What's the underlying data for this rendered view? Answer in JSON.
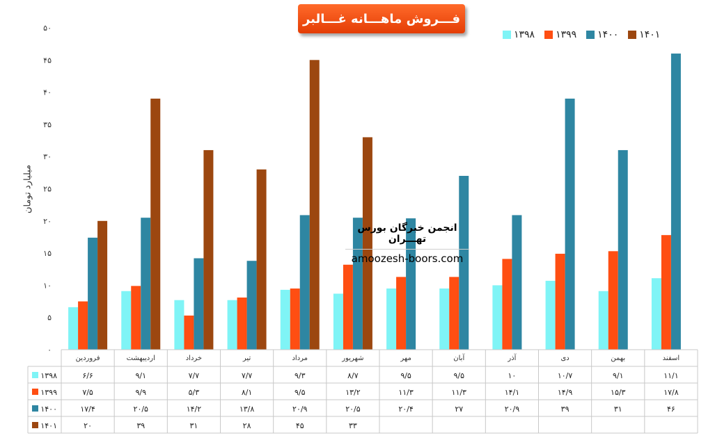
{
  "chart_data": {
    "type": "bar",
    "title": "فـــروش ماهـــانه غـــالبر",
    "ylabel": "میلیارد تومان",
    "xlabel": "",
    "ylim": [
      0,
      50
    ],
    "yticks": [
      0,
      5,
      10,
      15,
      20,
      25,
      30,
      35,
      40,
      45,
      50
    ],
    "ytick_labels": [
      "۰",
      "۵",
      "۱۰",
      "۱۵",
      "۲۰",
      "۲۵",
      "۳۰",
      "۳۵",
      "۴۰",
      "۴۵",
      "۵۰"
    ],
    "grid": false,
    "legend_position": "top-right",
    "categories": [
      "فروردین",
      "اردیبهشت",
      "خرداد",
      "تیر",
      "مرداد",
      "شهریور",
      "مهر",
      "آبان",
      "آذر",
      "دی",
      "بهمن",
      "اسفند"
    ],
    "series": [
      {
        "name": "۱۳۹۸",
        "color": "#7ff4f6",
        "values": [
          6.6,
          9.1,
          7.7,
          7.7,
          9.3,
          8.7,
          9.5,
          9.5,
          10,
          10.7,
          9.1,
          11.1
        ],
        "labels": [
          "۶/۶",
          "۹/۱",
          "۷/۷",
          "۷/۷",
          "۹/۳",
          "۸/۷",
          "۹/۵",
          "۹/۵",
          "۱۰",
          "۱۰/۷",
          "۹/۱",
          "۱۱/۱"
        ]
      },
      {
        "name": "۱۳۹۹",
        "color": "#ff4e12",
        "values": [
          7.5,
          9.9,
          5.3,
          8.1,
          9.5,
          13.2,
          11.3,
          11.3,
          14.1,
          14.9,
          15.3,
          17.8
        ],
        "labels": [
          "۷/۵",
          "۹/۹",
          "۵/۳",
          "۸/۱",
          "۹/۵",
          "۱۳/۲",
          "۱۱/۳",
          "۱۱/۳",
          "۱۴/۱",
          "۱۴/۹",
          "۱۵/۳",
          "۱۷/۸"
        ]
      },
      {
        "name": "۱۴۰۰",
        "color": "#2e86a2",
        "values": [
          17.4,
          20.5,
          14.2,
          13.8,
          20.9,
          20.5,
          20.4,
          27,
          20.9,
          39,
          31,
          46
        ],
        "labels": [
          "۱۷/۴",
          "۲۰/۵",
          "۱۴/۲",
          "۱۳/۸",
          "۲۰/۹",
          "۲۰/۵",
          "۲۰/۴",
          "۲۷",
          "۲۰/۹",
          "۳۹",
          "۳۱",
          "۴۶"
        ]
      },
      {
        "name": "۱۴۰۱",
        "color": "#9c4710",
        "values": [
          20,
          39,
          31,
          28,
          45,
          33,
          null,
          null,
          null,
          null,
          null,
          null
        ],
        "labels": [
          "۲۰",
          "۳۹",
          "۳۱",
          "۲۸",
          "۴۵",
          "۳۳",
          "",
          "",
          "",
          "",
          "",
          ""
        ]
      }
    ]
  },
  "watermark": {
    "line1": "انجمن خبرگان بورس تهـــران",
    "line2": "amoozesh-boors.com"
  }
}
